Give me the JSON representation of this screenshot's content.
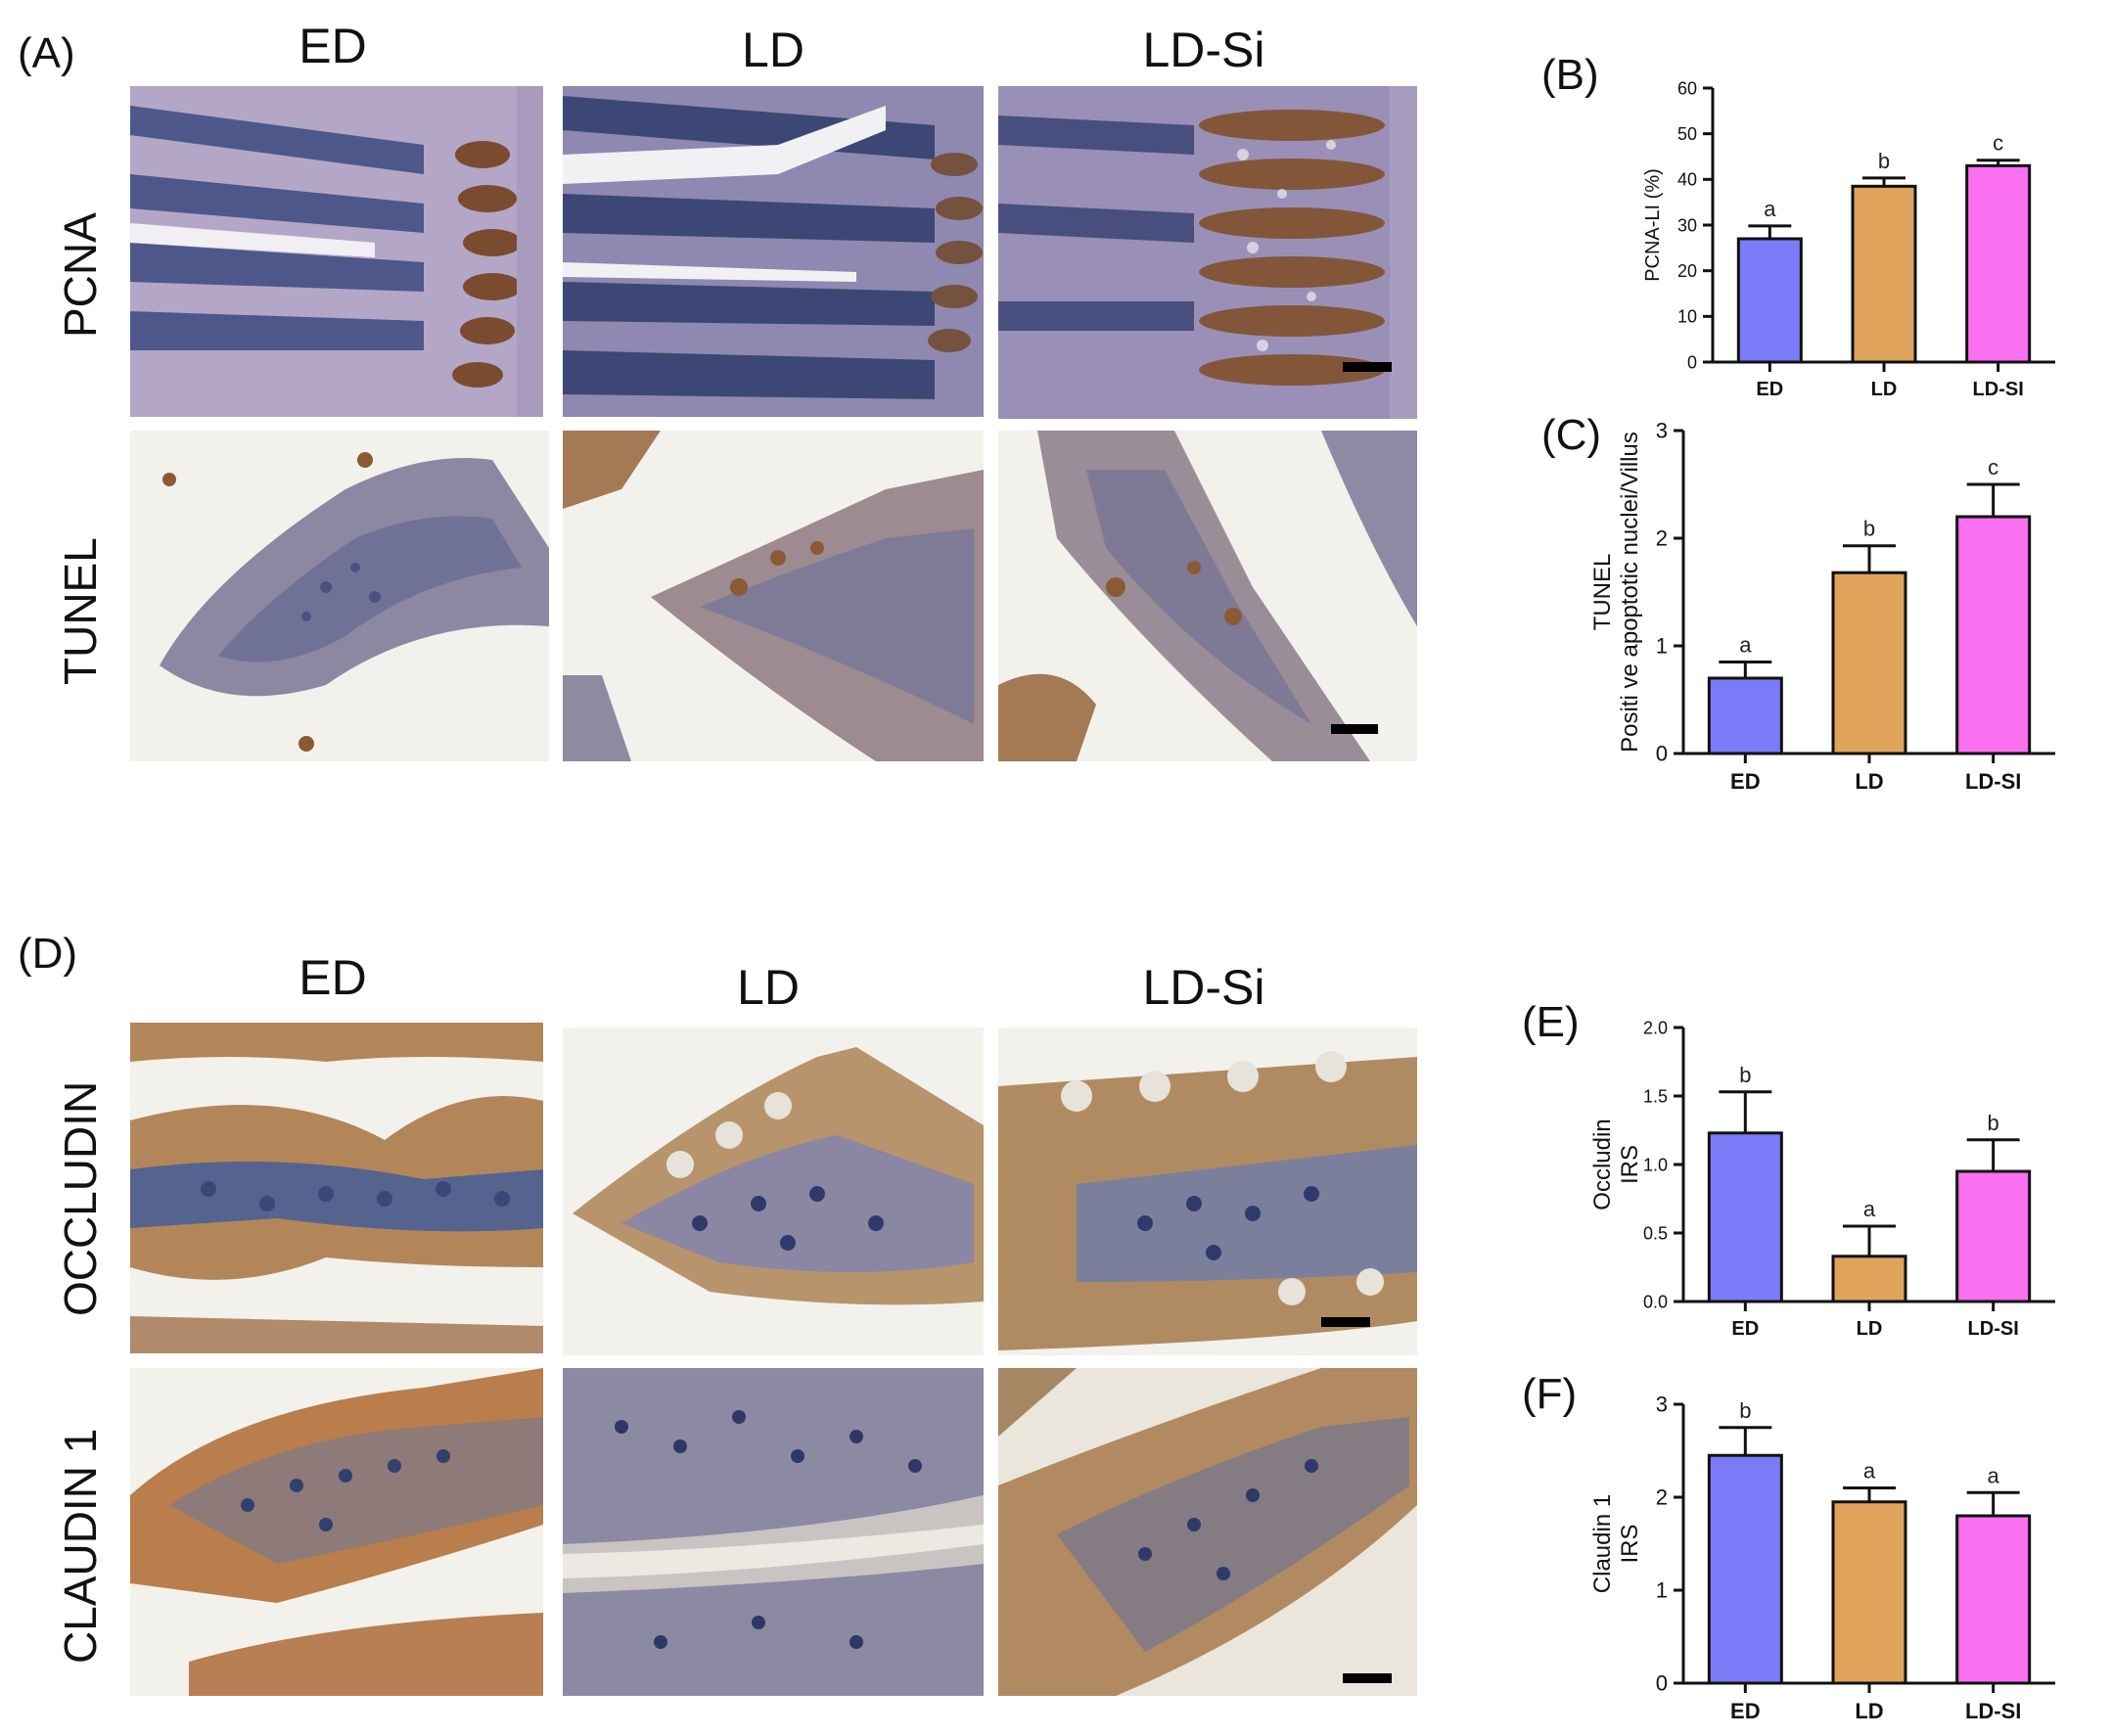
{
  "figure": {
    "panels": {
      "A": "(A)",
      "B": "(B)",
      "C": "(C)",
      "D": "(D)",
      "E": "(E)",
      "F": "(F)"
    },
    "top_block": {
      "columns": [
        "ED",
        "LD",
        "LD-Si"
      ],
      "rows": [
        "PCNA",
        "TUNEL"
      ]
    },
    "bottom_block": {
      "columns": [
        "ED",
        "LD",
        "LD-Si"
      ],
      "rows": [
        "OCCLUDIN",
        "CLAUDIN 1"
      ]
    },
    "stain_colors": {
      "hematoxylin_blue": "#3c4a7e",
      "dab_brown": "#8a5a34",
      "tissue_light": "#b8a4c0",
      "background_white": "#f2f1ec"
    }
  },
  "chart_data": [
    {
      "id": "B",
      "type": "bar",
      "categories": [
        "ED",
        "LD",
        "LD-SI"
      ],
      "values": [
        27,
        38.5,
        43
      ],
      "errors": [
        2.8,
        1.8,
        1.2
      ],
      "letters": [
        "a",
        "b",
        "c"
      ],
      "ylabel": "PCNA-LI (%)",
      "ylabel2": "",
      "ylim": [
        0,
        60
      ],
      "yticks": [
        "0",
        "10",
        "20",
        "30",
        "40",
        "50",
        "60"
      ],
      "colors": [
        "#7b7bf7",
        "#e0a35c",
        "#fb6ff1"
      ]
    },
    {
      "id": "C",
      "type": "bar",
      "categories": [
        "ED",
        "LD",
        "LD-SI"
      ],
      "values": [
        0.7,
        1.68,
        2.2
      ],
      "errors": [
        0.15,
        0.25,
        0.3
      ],
      "letters": [
        "a",
        "b",
        "c"
      ],
      "ylabel": "TUNEL",
      "ylabel2": "Positi ve apoptotic nuclei/Villus",
      "ylim": [
        0,
        3
      ],
      "yticks": [
        "0",
        "1",
        "2",
        "3"
      ],
      "colors": [
        "#7b7bf7",
        "#e0a35c",
        "#fb6ff1"
      ]
    },
    {
      "id": "E",
      "type": "bar",
      "categories": [
        "ED",
        "LD",
        "LD-SI"
      ],
      "values": [
        1.23,
        0.33,
        0.95
      ],
      "errors": [
        0.3,
        0.22,
        0.23
      ],
      "letters": [
        "b",
        "a",
        "b"
      ],
      "ylabel": "Occludin",
      "ylabel2": "IRS",
      "ylim": [
        0,
        2.0
      ],
      "yticks": [
        "0.0",
        "0.5",
        "1.0",
        "1.5",
        "2.0"
      ],
      "colors": [
        "#7b7bf7",
        "#e0a35c",
        "#fb6ff1"
      ]
    },
    {
      "id": "F",
      "type": "bar",
      "categories": [
        "ED",
        "LD",
        "LD-SI"
      ],
      "values": [
        2.45,
        1.95,
        1.8
      ],
      "errors": [
        0.3,
        0.15,
        0.25
      ],
      "letters": [
        "b",
        "a",
        "a"
      ],
      "ylabel": "Claudin 1",
      "ylabel2": "IRS",
      "ylim": [
        0,
        3
      ],
      "yticks": [
        "0",
        "1",
        "2",
        "3"
      ],
      "colors": [
        "#7b7bf7",
        "#e0a35c",
        "#fb6ff1"
      ]
    }
  ]
}
